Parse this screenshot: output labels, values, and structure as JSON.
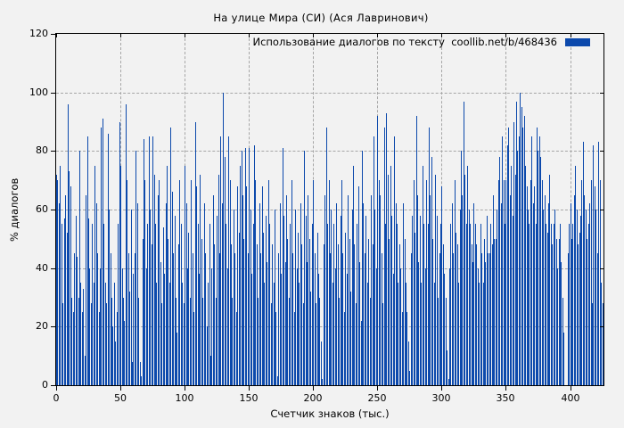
{
  "page": {
    "background": "#f2f2f2"
  },
  "colors": {
    "bar": "#0c49ac",
    "grid": "#a6a6a6",
    "frame": "#000000",
    "background": "#f2f2f2",
    "text": "#000000"
  },
  "chart_data": {
    "type": "bar",
    "title": "На улице Мира (СИ) (Ася Лавринович)",
    "legend_label": "Использование диалогов по тексту  coollib.net/b/468436",
    "legend_position": "top-right-inside",
    "xlabel": "Счетчик знаков (тыс.)",
    "ylabel": "% диалогов",
    "xlim": [
      0,
      426
    ],
    "ylim": [
      0,
      120
    ],
    "x_ticks": [
      0,
      50,
      100,
      150,
      200,
      250,
      300,
      350,
      400
    ],
    "y_ticks": [
      0,
      20,
      40,
      60,
      80,
      100,
      120
    ],
    "grid": true,
    "grid_style": "dashed",
    "bar_color": "#0c49ac",
    "x_unit": "thousand characters",
    "y_unit": "% dialogs",
    "x_step": 1,
    "values": [
      72,
      70,
      62,
      75,
      55,
      28,
      57,
      65,
      52,
      96,
      73,
      68,
      30,
      25,
      45,
      58,
      44,
      30,
      80,
      35,
      25,
      33,
      10,
      65,
      85,
      57,
      40,
      28,
      55,
      35,
      75,
      62,
      45,
      25,
      40,
      88,
      91,
      55,
      35,
      28,
      86,
      60,
      45,
      30,
      20,
      35,
      15,
      25,
      55,
      90,
      75,
      40,
      30,
      22,
      96,
      70,
      45,
      32,
      60,
      8,
      38,
      45,
      80,
      62,
      30,
      8,
      3,
      50,
      84,
      70,
      40,
      55,
      85,
      60,
      48,
      85,
      72,
      55,
      35,
      65,
      70,
      42,
      28,
      54,
      38,
      62,
      75,
      50,
      35,
      88,
      66,
      45,
      58,
      30,
      18,
      48,
      70,
      55,
      35,
      28,
      75,
      62,
      40,
      52,
      30,
      70,
      45,
      25,
      90,
      68,
      55,
      38,
      72,
      50,
      30,
      62,
      45,
      20,
      35,
      55,
      10,
      40,
      65,
      48,
      30,
      58,
      72,
      45,
      85,
      62,
      100,
      78,
      55,
      40,
      85,
      70,
      48,
      30,
      60,
      45,
      25,
      68,
      52,
      75,
      80,
      65,
      50,
      81,
      68,
      45,
      81,
      60,
      38,
      55,
      82,
      70,
      48,
      30,
      62,
      45,
      68,
      52,
      35,
      58,
      42,
      70,
      55,
      28,
      48,
      35,
      60,
      25,
      3,
      45,
      62,
      38,
      81,
      58,
      42,
      65,
      50,
      30,
      55,
      70,
      45,
      25,
      60,
      40,
      52,
      35,
      62,
      48,
      28,
      80,
      58,
      42,
      65,
      50,
      32,
      55,
      70,
      45,
      28,
      52,
      38,
      30,
      15,
      2,
      48,
      65,
      88,
      55,
      70,
      45,
      60,
      35,
      55,
      40,
      62,
      48,
      30,
      58,
      70,
      45,
      25,
      52,
      38,
      65,
      50,
      32,
      60,
      75,
      48,
      28,
      55,
      68,
      42,
      22,
      80,
      62,
      45,
      58,
      35,
      50,
      30,
      65,
      48,
      85,
      60,
      40,
      92,
      70,
      65,
      45,
      28,
      88,
      55,
      93,
      72,
      50,
      75,
      58,
      38,
      85,
      62,
      55,
      35,
      48,
      40,
      25,
      62,
      50,
      35,
      25,
      15,
      5,
      45,
      58,
      70,
      52,
      92,
      65,
      42,
      58,
      35,
      75,
      55,
      40,
      70,
      55,
      88,
      65,
      78,
      50,
      35,
      72,
      58,
      30,
      45,
      55,
      68,
      48,
      38,
      30,
      12,
      2,
      40,
      55,
      62,
      45,
      70,
      52,
      48,
      35,
      60,
      80,
      65,
      97,
      72,
      55,
      75,
      60,
      55,
      48,
      42,
      62,
      55,
      48,
      40,
      35,
      55,
      45,
      35,
      50,
      42,
      58,
      45,
      45,
      55,
      48,
      65,
      50,
      50,
      60,
      70,
      78,
      62,
      85,
      70,
      55,
      70,
      82,
      88,
      65,
      75,
      58,
      90,
      72,
      97,
      80,
      85,
      100,
      95,
      88,
      92,
      75,
      68,
      60,
      55,
      70,
      85,
      62,
      68,
      55,
      88,
      80,
      85,
      78,
      70,
      60,
      65,
      55,
      52,
      62,
      72,
      55,
      48,
      55,
      60,
      50,
      40,
      50,
      55,
      42,
      30,
      18,
      0,
      0,
      45,
      55,
      62,
      50,
      55,
      65,
      75,
      60,
      48,
      52,
      58,
      70,
      83,
      65,
      60,
      50,
      55,
      62,
      70,
      28,
      82,
      68,
      60,
      45,
      83,
      70,
      35,
      28
    ]
  }
}
